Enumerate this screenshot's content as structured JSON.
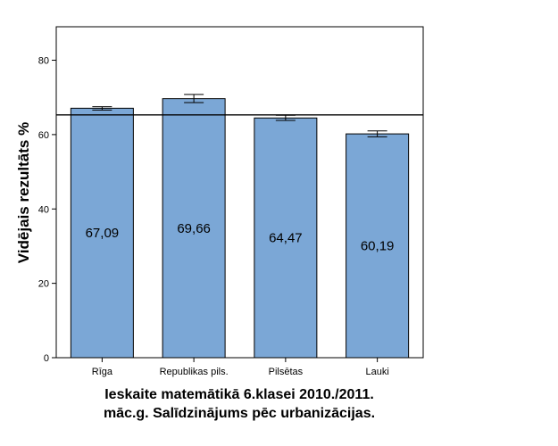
{
  "chart_data": {
    "type": "bar",
    "categories": [
      "Rīga",
      "Republikas pils.",
      "Pilsētas",
      "Lauki"
    ],
    "values": [
      67.09,
      69.66,
      64.47,
      60.19
    ],
    "data_labels": [
      "67,09",
      "69,66",
      "64,47",
      "60,19"
    ],
    "error_bars": [
      {
        "low": 66.6,
        "high": 67.5
      },
      {
        "low": 68.6,
        "high": 70.8
      },
      {
        "low": 63.8,
        "high": 65.2
      },
      {
        "low": 59.4,
        "high": 61.0
      }
    ],
    "reference_line": 65.3,
    "ylabel": "Vidējais rezultāts %",
    "xlabel_line1": "Ieskaite matemātikā 6.klasei 2010./2011.",
    "xlabel_line2": "māc.g. Salīdzinājums pēc urbanizācijas.",
    "ylim": [
      0,
      89
    ],
    "yticks": [
      0,
      20,
      40,
      60,
      80
    ],
    "grid": false,
    "colors": {
      "bar": "#7BA7D6",
      "bar_stroke": "#000000",
      "axis": "#000000"
    }
  }
}
